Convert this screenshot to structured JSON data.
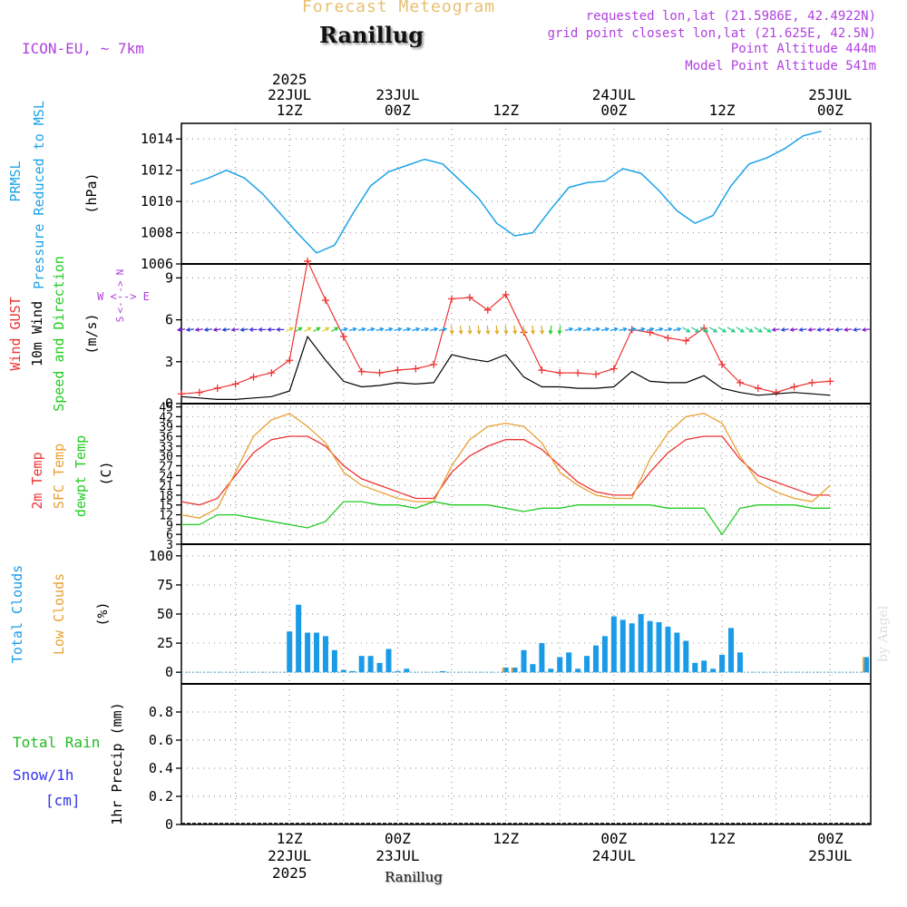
{
  "header": {
    "title": "Forecast Meteogram",
    "location": "Ranillug",
    "model": "ICON-EU, ~ 7km",
    "requested": "requested lon,lat (21.5986E, 42.4922N)",
    "gridpoint": "grid point closest lon,lat (21.625E, 42.5N)",
    "point_altitude": "Point Altitude 444m",
    "model_altitude": "Model Point Altitude 541m",
    "footer_location": "Ranillug",
    "credit": "by Angel"
  },
  "colors": {
    "pressure": "#1aa3e8",
    "gust": "#ee3333",
    "wind": "#000000",
    "wind_dir": "#22cc22",
    "temp2m": "#ee3333",
    "sfc": "#e8a030",
    "dewpt": "#22cc22",
    "clouds": "#1a9be8",
    "low_clouds": "#e8a030",
    "rain": "#22bb22",
    "snow": "#3333ee",
    "purple": "#b040e0"
  },
  "time_axis": {
    "top_ticks": [
      {
        "t": 12,
        "lines": [
          "2025",
          "22JUL",
          "12Z"
        ]
      },
      {
        "t": 24,
        "lines": [
          "23JUL",
          "00Z"
        ]
      },
      {
        "t": 36,
        "lines": [
          "12Z"
        ]
      },
      {
        "t": 48,
        "lines": [
          "24JUL",
          "00Z"
        ]
      },
      {
        "t": 60,
        "lines": [
          "12Z"
        ]
      },
      {
        "t": 72,
        "lines": [
          "25JUL",
          "00Z"
        ]
      }
    ],
    "bottom_ticks": [
      {
        "t": 12,
        "lines": [
          "12Z",
          "22JUL",
          "2025"
        ]
      },
      {
        "t": 24,
        "lines": [
          "00Z",
          "23JUL"
        ]
      },
      {
        "t": 36,
        "lines": [
          "12Z"
        ]
      },
      {
        "t": 48,
        "lines": [
          "00Z",
          "24JUL"
        ]
      },
      {
        "t": 60,
        "lines": [
          "12Z"
        ]
      },
      {
        "t": 72,
        "lines": [
          "00Z",
          "25JUL"
        ]
      }
    ]
  },
  "panels": {
    "pressure": {
      "label_lines": [
        "PRMSL",
        "Pressure Reduced to MSL",
        "(hPa)"
      ],
      "ticks": [
        "1006",
        "1008",
        "1010",
        "1012",
        "1014"
      ]
    },
    "wind": {
      "label_lines": [
        "Wind GUST",
        "10m Wind",
        "Speed and Direction",
        "(m/s)"
      ],
      "compass_ns": [
        "N",
        "S"
      ],
      "compass_row": "W <--> E",
      "compass_arrows_v": [
        "->",
        "<-"
      ],
      "ticks": [
        "0",
        "3",
        "6",
        "9"
      ]
    },
    "temp": {
      "label_lines": [
        "2m Temp",
        "SFC Temp",
        "dewpt Temp",
        "(C)"
      ],
      "ticks": [
        "3",
        "6",
        "9",
        "12",
        "15",
        "18",
        "21",
        "24",
        "27",
        "30",
        "33",
        "36",
        "39",
        "42",
        "45"
      ]
    },
    "clouds": {
      "label_lines": [
        "Total Clouds",
        "Low Clouds",
        "(%)"
      ],
      "ticks": [
        "0",
        "25",
        "50",
        "75",
        "100"
      ]
    },
    "precip": {
      "label_lines": [
        "Total Rain",
        "Snow/1h",
        "[cm]",
        "1hr Precip (mm)"
      ],
      "ticks": [
        "0",
        "0.2",
        "0.4",
        "0.6",
        "0.8"
      ]
    }
  },
  "chart_data": [
    {
      "type": "line",
      "name": "PRMSL",
      "ylabel": "(hPa)",
      "ylim": [
        1006,
        1015
      ],
      "x_start": 1,
      "x_step": 2,
      "values": [
        1011.1,
        1011.5,
        1012.0,
        1011.5,
        1010.5,
        1009.2,
        1007.9,
        1006.7,
        1007.2,
        1009.2,
        1011.0,
        1011.9,
        1012.3,
        1012.7,
        1012.4,
        1011.3,
        1010.2,
        1008.6,
        1007.8,
        1008.0,
        1009.5,
        1010.9,
        1011.2,
        1011.3,
        1012.1,
        1011.8,
        1010.7,
        1009.4,
        1008.6,
        1009.1,
        1011.0,
        1012.4,
        1012.8,
        1013.4,
        1014.2,
        1014.5
      ],
      "grid": true
    },
    {
      "type": "line",
      "name": "Wind",
      "ylabel": "(m/s)",
      "ylim": [
        0,
        10
      ],
      "x_start": 0,
      "x_step": 2,
      "series": [
        {
          "name": "Wind GUST",
          "values": [
            0.7,
            0.8,
            1.1,
            1.4,
            1.9,
            2.2,
            3.1,
            10.2,
            7.4,
            4.8,
            2.3,
            2.2,
            2.4,
            2.5,
            2.8,
            7.5,
            7.6,
            6.7,
            7.8,
            5.1,
            2.4,
            2.2,
            2.2,
            2.1,
            2.5,
            5.3,
            5.1,
            4.7,
            4.5,
            5.4,
            2.8,
            1.5,
            1.1,
            0.8,
            1.2,
            1.5,
            1.6
          ]
        },
        {
          "name": "10m Wind",
          "values": [
            0.5,
            0.4,
            0.3,
            0.3,
            0.4,
            0.5,
            0.9,
            4.8,
            3.1,
            1.6,
            1.2,
            1.3,
            1.5,
            1.4,
            1.5,
            3.5,
            3.2,
            3.0,
            3.5,
            1.9,
            1.2,
            1.2,
            1.1,
            1.1,
            1.2,
            2.3,
            1.6,
            1.5,
            1.5,
            2.0,
            1.1,
            0.8,
            0.6,
            0.7,
            0.8,
            0.7,
            0.6
          ]
        }
      ],
      "arrow_row_speed": 5.3,
      "grid": true
    },
    {
      "type": "line",
      "name": "Temperature",
      "ylabel": "(C)",
      "ylim": [
        3,
        46
      ],
      "x_start": 0,
      "x_step": 2,
      "series": [
        {
          "name": "2m Temp",
          "values": [
            16,
            15,
            17,
            24,
            31,
            35,
            36,
            36,
            33,
            27,
            23,
            21,
            19,
            17,
            17,
            25,
            30,
            33,
            35,
            35,
            32,
            27,
            22,
            19,
            18,
            18,
            25,
            31,
            35,
            36,
            36,
            29,
            24,
            22,
            20,
            18,
            18
          ]
        },
        {
          "name": "SFC Temp",
          "values": [
            12,
            11,
            14,
            25,
            36,
            41,
            43,
            39,
            34,
            25,
            21,
            19,
            17,
            16,
            16,
            27,
            35,
            39,
            40,
            39,
            34,
            25,
            21,
            18,
            17,
            17,
            29,
            37,
            42,
            43,
            40,
            30,
            22,
            19,
            17,
            16,
            21
          ]
        },
        {
          "name": "dewpt Temp",
          "values": [
            9,
            9,
            12,
            12,
            11,
            10,
            9,
            8,
            10,
            16,
            16,
            15,
            15,
            14,
            16,
            15,
            15,
            15,
            14,
            13,
            14,
            14,
            15,
            15,
            15,
            15,
            15,
            14,
            14,
            14,
            6,
            14,
            15,
            15,
            15,
            14,
            14
          ]
        }
      ],
      "grid": true
    },
    {
      "type": "bar",
      "name": "Clouds",
      "ylabel": "(%)",
      "ylim": [
        -10,
        110
      ],
      "x_start": 0,
      "x_step": 1,
      "series": [
        {
          "name": "Total Clouds",
          "values": [
            0,
            0,
            0,
            0,
            0,
            0,
            0,
            0,
            0,
            0,
            0,
            0,
            35,
            58,
            34,
            34,
            31,
            19,
            2,
            1,
            14,
            14,
            8,
            20,
            1,
            3,
            0,
            0,
            0,
            1,
            0,
            0,
            0,
            0,
            0,
            0,
            4,
            4,
            19,
            7,
            25,
            3,
            13,
            17,
            3,
            14,
            23,
            31,
            48,
            45,
            42,
            50,
            44,
            43,
            39,
            34,
            27,
            8,
            10,
            3,
            15,
            38,
            17,
            0,
            0,
            0,
            0,
            0,
            0,
            0,
            0,
            0,
            0,
            0,
            0,
            0,
            13
          ]
        },
        {
          "name": "Low Clouds",
          "values": [
            0,
            0,
            0,
            0,
            0,
            0,
            0,
            0,
            0,
            0,
            0,
            0,
            0,
            0,
            0,
            0,
            0,
            0,
            0,
            0,
            0,
            0,
            0,
            0,
            0,
            0,
            0,
            0,
            0,
            0,
            0,
            0,
            0,
            0,
            0,
            0,
            4,
            4,
            0,
            0,
            0,
            0,
            0,
            0,
            0,
            0,
            0,
            0,
            0,
            0,
            0,
            0,
            0,
            0,
            0,
            0,
            0,
            0,
            0,
            0,
            0,
            0,
            0,
            0,
            0,
            0,
            0,
            0,
            0,
            0,
            0,
            0,
            0,
            0,
            0,
            0,
            13
          ]
        }
      ],
      "grid": true
    },
    {
      "type": "bar",
      "name": "Precipitation",
      "ylabel": "1hr Precip (mm)",
      "ylim": [
        0,
        1
      ],
      "series": [
        {
          "name": "Total Rain",
          "values": []
        },
        {
          "name": "Snow/1h",
          "values": []
        }
      ],
      "grid": true
    }
  ]
}
